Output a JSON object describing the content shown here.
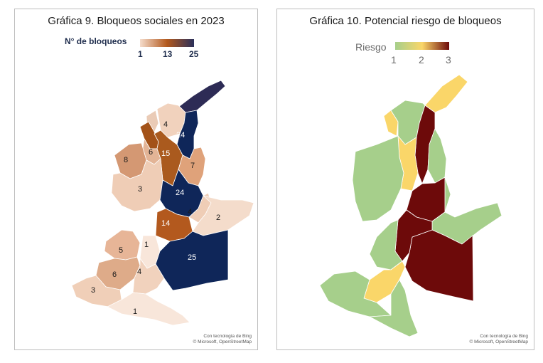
{
  "left_map": {
    "title": "Gráfica 9. Bloqueos sociales en 2023",
    "legend": {
      "title": "N° de bloqueos",
      "ticks": [
        "1",
        "13",
        "25"
      ],
      "min": 1,
      "max": 25,
      "colors": [
        "#f5dccb",
        "#b3591e",
        "#2a2f5a"
      ]
    },
    "regions": [
      {
        "name": "r-north-tip",
        "value": null,
        "fill": "#2d2b55"
      },
      {
        "name": "r-4-north",
        "value": "4",
        "fill": "#f1d2bd"
      },
      {
        "name": "r-nw-small",
        "value": null,
        "fill": "#eacbb6"
      },
      {
        "name": "r-brown-west",
        "value": null,
        "fill": "#a35218"
      },
      {
        "name": "r-24-north",
        "value": "24",
        "fill": "#0f2659"
      },
      {
        "name": "r-6",
        "value": "6",
        "fill": "#e3b496"
      },
      {
        "name": "r-15",
        "value": "15",
        "fill": "#aa5a1e"
      },
      {
        "name": "r-8",
        "value": "8",
        "fill": "#d49873"
      },
      {
        "name": "r-7",
        "value": "7",
        "fill": "#dfa27a"
      },
      {
        "name": "r-3-west",
        "value": "3",
        "fill": "#efcdb6"
      },
      {
        "name": "r-24-central",
        "value": "24",
        "fill": "#0f2659"
      },
      {
        "name": "r-4-central",
        "value": "4",
        "fill": "#efcdb6"
      },
      {
        "name": "r-2",
        "value": "2",
        "fill": "#f4dccb"
      },
      {
        "name": "r-14",
        "value": "14",
        "fill": "#b3591e"
      },
      {
        "name": "r-1-mid",
        "value": "1",
        "fill": "#f8e6da"
      },
      {
        "name": "r-25",
        "value": "25",
        "fill": "#0f2659"
      },
      {
        "name": "r-5",
        "value": "5",
        "fill": "#e7b597"
      },
      {
        "name": "r-6-south",
        "value": "6",
        "fill": "#deab89"
      },
      {
        "name": "r-4-south",
        "value": "4",
        "fill": "#f1d2bd"
      },
      {
        "name": "r-3-south",
        "value": "3",
        "fill": "#f0cfb8"
      },
      {
        "name": "r-1-south",
        "value": "1",
        "fill": "#f8e6da"
      }
    ],
    "attribution": [
      "Con tecnología de Bing",
      "© Microsoft, OpenStreetMap"
    ]
  },
  "right_map": {
    "title": "Gráfica 10. Potencial riesgo de bloqueos",
    "legend": {
      "title": "Riesgo",
      "ticks": [
        "1",
        "2",
        "3"
      ],
      "min": 1,
      "max": 3,
      "colors": [
        "#a6cf8b",
        "#fad669",
        "#6d0a0a"
      ]
    },
    "regions": [
      {
        "name": "rr-north-tip",
        "risk": 2
      },
      {
        "name": "rr-nw-small",
        "risk": 2
      },
      {
        "name": "rr-north",
        "risk": 1
      },
      {
        "name": "rr-center-north",
        "risk": 3
      },
      {
        "name": "rr-west-yellow",
        "risk": 2
      },
      {
        "name": "rr-west",
        "risk": 1
      },
      {
        "name": "rr-east",
        "risk": 1
      },
      {
        "name": "rr-center",
        "risk": 3
      },
      {
        "name": "rr-east-2",
        "risk": 1
      },
      {
        "name": "rr-se",
        "risk": 3
      },
      {
        "name": "rr-mid-red",
        "risk": 3
      },
      {
        "name": "rr-mid-west",
        "risk": 1
      },
      {
        "name": "rr-sw-yellow",
        "risk": 2
      },
      {
        "name": "rr-south",
        "risk": 1
      },
      {
        "name": "rr-south-tip",
        "risk": 1
      }
    ],
    "attribution": [
      "Con tecnología de Bing",
      "© Microsoft, OpenStreetMap"
    ]
  }
}
